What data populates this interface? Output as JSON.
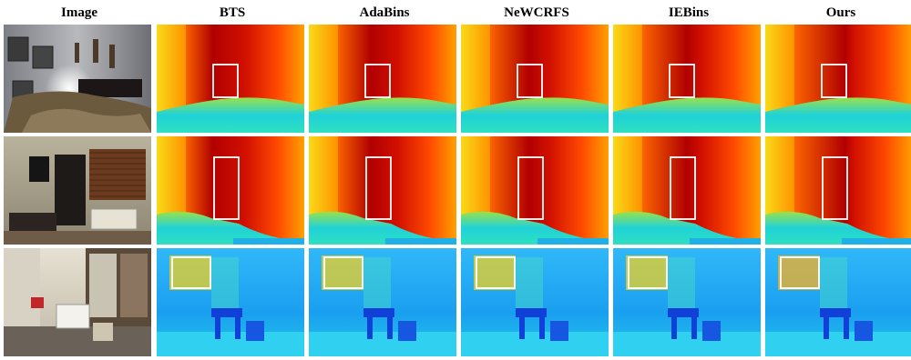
{
  "columns": [
    "Image",
    "BTS",
    "AdaBins",
    "NeWCRFS",
    "IEBins",
    "Ours"
  ],
  "rows": [
    {
      "scene": "bedroom",
      "palette": "warm"
    },
    {
      "scene": "study",
      "palette": "warm"
    },
    {
      "scene": "playroom",
      "palette": "cool"
    }
  ],
  "colors": {
    "depth_near": "#1fd2d8",
    "depth_mid": "#f7e21c",
    "depth_far": "#b10000",
    "cool_base": "#1a9ff0",
    "cool_high": "#f0d020",
    "highlight_box": "#ffffff"
  }
}
